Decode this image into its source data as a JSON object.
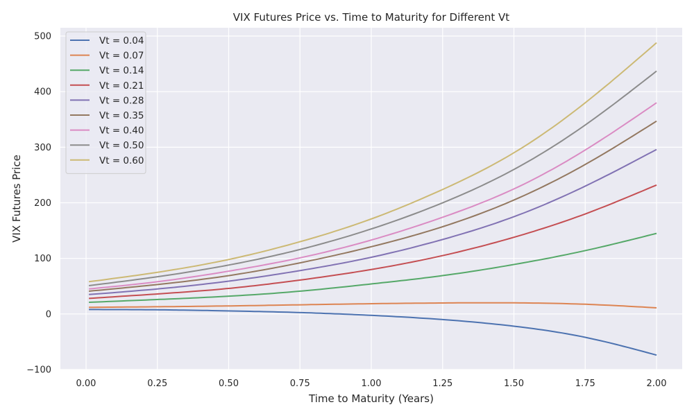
{
  "chart_data": {
    "type": "line",
    "title": "VIX Futures Price vs. Time to Maturity for Different Vt",
    "xlabel": "Time to Maturity (Years)",
    "ylabel": "VIX Futures Price",
    "xlim": [
      -0.09,
      2.09
    ],
    "ylim": [
      -100,
      515
    ],
    "xticks": [
      0.0,
      0.25,
      0.5,
      0.75,
      1.0,
      1.25,
      1.5,
      1.75,
      2.0
    ],
    "xtick_labels": [
      "0.00",
      "0.25",
      "0.50",
      "0.75",
      "1.00",
      "1.25",
      "1.50",
      "1.75",
      "2.00"
    ],
    "yticks": [
      -100,
      0,
      100,
      200,
      300,
      400,
      500
    ],
    "ytick_labels": [
      "−100",
      "0",
      "100",
      "200",
      "300",
      "400",
      "500"
    ],
    "grid": true,
    "legend_position": "top-left",
    "background": "#eaeaf2",
    "x": [
      0.01,
      0.25,
      0.5,
      0.75,
      1.0,
      1.25,
      1.5,
      1.75,
      2.0
    ],
    "series": [
      {
        "name": "Vt = 0.04",
        "color": "#4c72b0",
        "values": [
          8,
          7.5,
          5.5,
          2.5,
          -2.5,
          -10,
          -22,
          -42,
          -74
        ]
      },
      {
        "name": "Vt = 0.07",
        "color": "#dd8452",
        "values": [
          12,
          13,
          14.5,
          16.5,
          18.5,
          19.8,
          20,
          17.5,
          11
        ]
      },
      {
        "name": "Vt = 0.14",
        "color": "#55a868",
        "values": [
          21,
          26,
          32,
          41,
          54,
          69,
          89,
          114,
          145
        ]
      },
      {
        "name": "Vt = 0.21",
        "color": "#c44e52",
        "values": [
          28,
          36,
          46,
          61,
          80,
          105,
          138,
          180,
          232
        ]
      },
      {
        "name": "Vt = 0.28",
        "color": "#8172b3",
        "values": [
          35,
          45,
          59,
          78,
          102,
          134,
          175,
          230,
          296
        ]
      },
      {
        "name": "Vt = 0.35",
        "color": "#937860",
        "values": [
          41,
          53,
          69,
          92,
          121,
          157,
          205,
          269,
          347
        ]
      },
      {
        "name": "Vt = 0.40",
        "color": "#da8bc3",
        "values": [
          45,
          58,
          77,
          101,
          133,
          174,
          225,
          295,
          380
        ]
      },
      {
        "name": "Vt = 0.50",
        "color": "#8c8c8c",
        "values": [
          51,
          67,
          88,
          116,
          153,
          200,
          260,
          340,
          437
        ]
      },
      {
        "name": "Vt = 0.60",
        "color": "#ccb974",
        "values": [
          58,
          75,
          98,
          130,
          171,
          224,
          290,
          380,
          488
        ]
      }
    ]
  }
}
